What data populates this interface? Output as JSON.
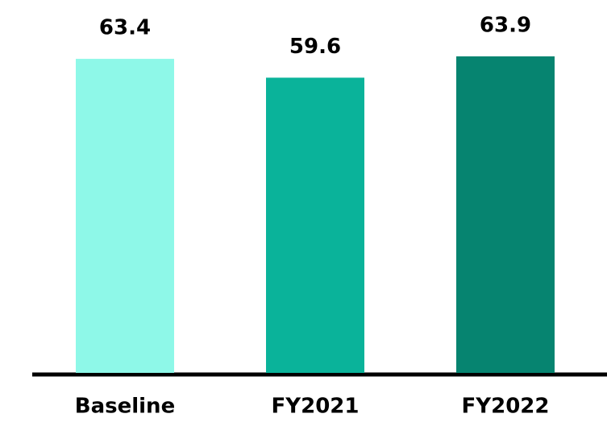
{
  "chart_data": {
    "type": "bar",
    "categories": [
      "Baseline",
      "FY2021",
      "FY2022"
    ],
    "values": [
      63.4,
      59.6,
      63.9
    ],
    "colors": [
      "#8ef8e8",
      "#0ab39a",
      "#068470"
    ]
  }
}
